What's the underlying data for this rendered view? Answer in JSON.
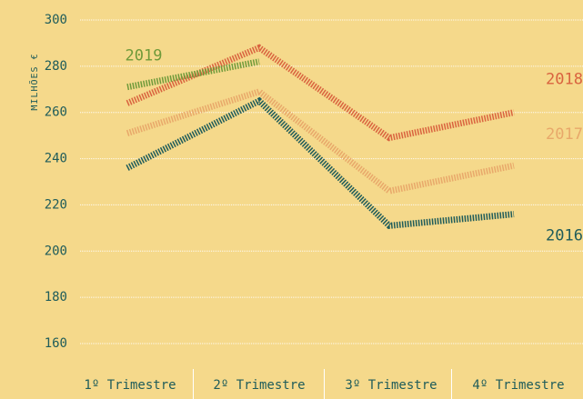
{
  "chart_data": {
    "type": "line",
    "y_label": "MILHÕES €",
    "categories": [
      "1º Trimestre",
      "2º Trimestre",
      "3º Trimestre",
      "4º Trimestre"
    ],
    "series": [
      {
        "name": "2016",
        "color": "#1f5c5a",
        "values": [
          236,
          265,
          211,
          216
        ]
      },
      {
        "name": "2017",
        "color": "#e8a86a",
        "values": [
          251,
          269,
          226,
          237
        ]
      },
      {
        "name": "2018",
        "color": "#d9633f",
        "values": [
          264,
          288,
          249,
          260
        ]
      },
      {
        "name": "2019",
        "color": "#6f9a3a",
        "values": [
          271,
          282,
          null,
          null
        ]
      }
    ],
    "ylim": [
      160,
      300
    ],
    "yticks": [
      160,
      180,
      200,
      220,
      240,
      260,
      280,
      300
    ],
    "grid": true
  }
}
